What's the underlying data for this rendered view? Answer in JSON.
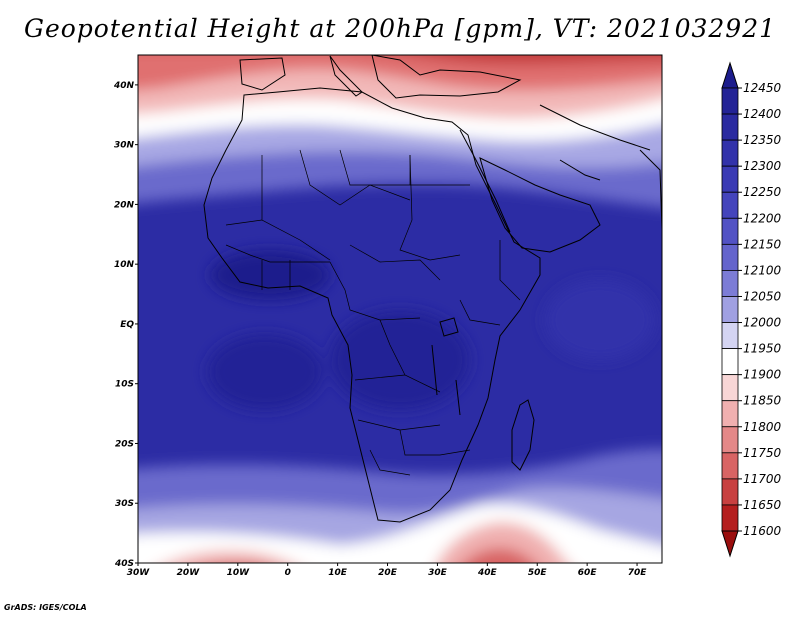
{
  "title": "Geopotential Height at 200hPa [gpm], VT: 2021032921",
  "credit": "GrADS: IGES/COLA",
  "chart_data": {
    "type": "map-contour",
    "variable": "Geopotential Height at 200hPa",
    "units": "gpm",
    "valid_time": "2021032921",
    "lon_range": [
      -30,
      75
    ],
    "lat_range": [
      -40,
      45
    ],
    "lon_ticks": [
      "30W",
      "20W",
      "10W",
      "0",
      "10E",
      "20E",
      "30E",
      "40E",
      "50E",
      "60E",
      "70E"
    ],
    "lat_ticks": [
      "40N",
      "30N",
      "20N",
      "10N",
      "EQ",
      "10S",
      "20S",
      "30S",
      "40S"
    ],
    "colorbar": {
      "levels": [
        12450,
        12400,
        12350,
        12300,
        12250,
        12200,
        12150,
        12100,
        12050,
        12000,
        11950,
        11900,
        11850,
        11800,
        11750,
        11700,
        11650,
        11600
      ],
      "colors": [
        "#1c1c8c",
        "#232396",
        "#2a2aa0",
        "#3232aa",
        "#3a3ab4",
        "#4444bc",
        "#5252c4",
        "#6464cc",
        "#7c7cd6",
        "#a0a0e2",
        "#d4d4f2",
        "#ffffff",
        "#f8d6d6",
        "#f0b0b0",
        "#e48888",
        "#d86464",
        "#c84040",
        "#b41e1e",
        "#9a0e0e"
      ]
    },
    "annotations": {
      "low_heights": "Mediterranean / Europe (north of 35N) and the southern ocean near 40S",
      "high_heights": "tropical Africa and the Indian Ocean (about 12400-12450 gpm)"
    }
  }
}
